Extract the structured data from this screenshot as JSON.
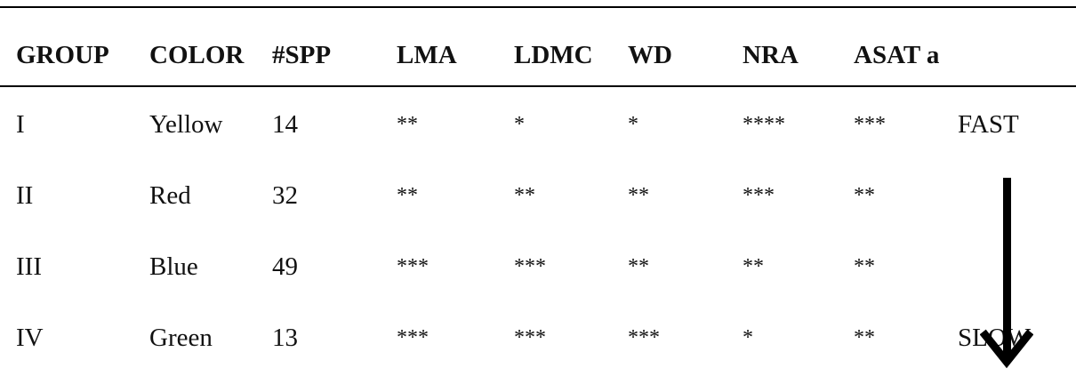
{
  "table": {
    "headers": [
      "GROUP",
      "COLOR",
      "#SPP",
      "LMA",
      "LDMC",
      "WD",
      "NRA",
      "ASAT a"
    ],
    "rows": [
      {
        "group": "I",
        "color": "Yellow",
        "spp": "14",
        "lma": "**",
        "ldmc": "*",
        "wd": "*",
        "nra": "****",
        "asat": "***"
      },
      {
        "group": "II",
        "color": "Red",
        "spp": "32",
        "lma": "**",
        "ldmc": "**",
        "wd": "**",
        "nra": "***",
        "asat": "**"
      },
      {
        "group": "III",
        "color": "Blue",
        "spp": "49",
        "lma": "***",
        "ldmc": "***",
        "wd": "**",
        "nra": "**",
        "asat": "**"
      },
      {
        "group": "IV",
        "color": "Green",
        "spp": "13",
        "lma": "***",
        "ldmc": "***",
        "wd": "***",
        "nra": "*",
        "asat": "**"
      }
    ],
    "scale": {
      "top_label": "FAST",
      "bottom_label": "SLOW"
    }
  }
}
